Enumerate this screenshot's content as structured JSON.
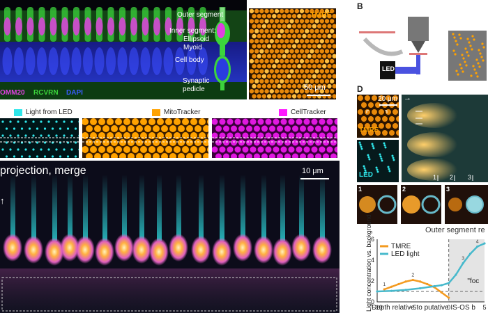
{
  "panel_letters": {
    "b": "B",
    "d": "D"
  },
  "panel_a": {
    "labels": [
      "Outer segment",
      "Inner segment:",
      "Ellipsoid",
      "Myoid",
      "Cell body",
      "Synaptic",
      "pedicle"
    ],
    "stains": [
      "OMM20",
      "RCVRN",
      "DAPI"
    ],
    "stain_colors": [
      "#e040e0",
      "#3cd43c",
      "#3a5cff"
    ]
  },
  "panel_tmre": {
    "title": "TMRE",
    "scale": "50 μm"
  },
  "legend_top": [
    {
      "label": "Light from LED",
      "color": "#2fe6ea"
    },
    {
      "label": "MitoTracker",
      "color": "#ffa200"
    },
    {
      "label": "CellTracker",
      "color": "#ff1aff"
    }
  ],
  "projection": {
    "title": "projection, merge",
    "scale": "10 μm"
  },
  "panel_d": {
    "scale": "20 μm",
    "tmre_label": "TMRE",
    "led_label": "LED",
    "column_ticks": [
      "1",
      "2",
      "3"
    ],
    "inset_numbers": [
      "1",
      "2",
      "3"
    ],
    "section_label": "Outer segment re"
  },
  "chart_data": {
    "type": "line",
    "xlabel": "Depth relative to putative IS-OS b",
    "ylabel": "Light concentration vs. background",
    "xlim": [
      -10,
      5
    ],
    "ylim": [
      0,
      6
    ],
    "xticks": [
      "−10",
      "−5",
      "0",
      "5"
    ],
    "yticks": [
      "0",
      "2",
      "4",
      "6"
    ],
    "legend": [
      "TMRE",
      "LED light"
    ],
    "annotation": "\"foc",
    "series": [
      {
        "name": "TMRE",
        "color": "#f39a1f",
        "x": [
          -9,
          -8,
          -7,
          -6,
          -5,
          -4,
          -3,
          -2,
          -1,
          0
        ],
        "y": [
          1.2,
          1.45,
          1.7,
          1.95,
          2.1,
          1.95,
          1.7,
          1.4,
          0.9,
          0.4
        ]
      },
      {
        "name": "LED light",
        "color": "#47b9cc",
        "x": [
          -10,
          -8,
          -6,
          -4,
          -2,
          -1,
          0,
          1,
          2,
          3,
          4,
          5
        ],
        "y": [
          1.0,
          1.05,
          1.15,
          1.3,
          1.5,
          1.6,
          1.8,
          2.6,
          3.7,
          4.6,
          5.3,
          5.6
        ]
      }
    ],
    "point_labels": [
      {
        "series": "TMRE",
        "text": "1",
        "x": -9,
        "y": 1.2
      },
      {
        "series": "TMRE",
        "text": "2",
        "x": -5,
        "y": 2.1
      },
      {
        "series": "LED light",
        "text": "3",
        "x": 2,
        "y": 3.7
      },
      {
        "series": "LED light",
        "text": "4",
        "x": 4,
        "y": 5.3
      }
    ],
    "reference_line": {
      "y": 1
    },
    "shaded_region_x": [
      0,
      5
    ]
  }
}
